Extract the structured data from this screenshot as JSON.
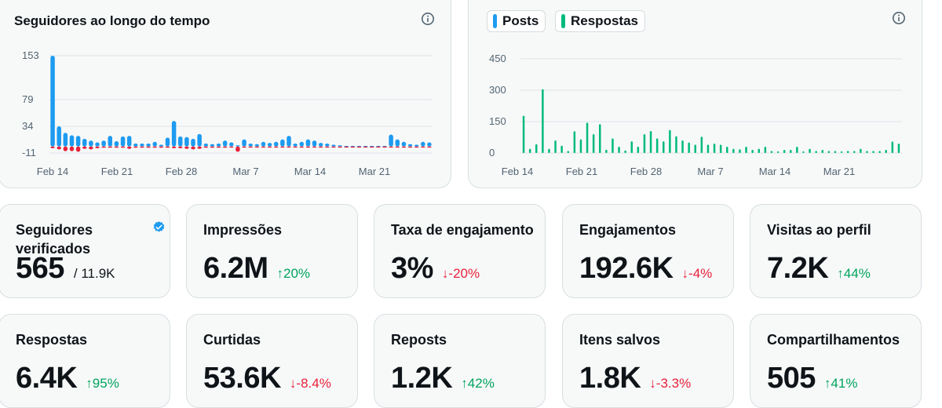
{
  "followers_chart": {
    "title": "Seguidores ao longo do tempo",
    "info_icon": "info-icon"
  },
  "posts_chart": {
    "legend": [
      {
        "label": "Posts",
        "color": "#1d9bf0"
      },
      {
        "label": "Respostas",
        "color": "#00ba7c"
      }
    ],
    "info_icon": "info-icon"
  },
  "chart_data": [
    {
      "type": "bar",
      "title": "Seguidores ao longo do tempo",
      "x_tick_labels": [
        "Feb 14",
        "Feb 21",
        "Feb 28",
        "Mar 7",
        "Mar 14",
        "Mar 21"
      ],
      "y_tick_labels": [
        "153",
        "79",
        "34",
        "-11"
      ],
      "ylim": [
        -11,
        153
      ],
      "grid": true,
      "series": [
        {
          "color": "#1d9bf0",
          "values": [
            153,
            34,
            23,
            19,
            18,
            13,
            10,
            7,
            10,
            18,
            9,
            17,
            18,
            5,
            5,
            5,
            8,
            3,
            15,
            43,
            17,
            16,
            13,
            21,
            5,
            4,
            5,
            10,
            7,
            2,
            12,
            5,
            4,
            8,
            6,
            8,
            12,
            18,
            5,
            8,
            12,
            10,
            6,
            5,
            3,
            2,
            1,
            1,
            1,
            1,
            1,
            1,
            1,
            20,
            12,
            8,
            4,
            3,
            8,
            7
          ]
        },
        {
          "color": "#e8213a",
          "values": [
            -3,
            -5,
            -8,
            -8,
            -9,
            -4,
            -5,
            -3,
            -2,
            -2,
            -2,
            -2,
            -4,
            -2,
            -2,
            -2,
            -2,
            -2,
            -2,
            -3,
            -3,
            -4,
            -5,
            -4,
            -2,
            -2,
            -2,
            -2,
            -1,
            -9,
            -1,
            -1,
            -1,
            -1,
            -1,
            -1,
            -1,
            -1,
            -1,
            -1,
            -1,
            -1,
            -1,
            -1,
            -1,
            -1,
            -1,
            -1,
            -1,
            -1,
            -1,
            -1,
            -1,
            -1,
            -1,
            -1,
            -1,
            -1,
            -1,
            -1
          ]
        }
      ]
    },
    {
      "type": "bar",
      "x_tick_labels": [
        "Feb 14",
        "Feb 21",
        "Feb 28",
        "Mar 7",
        "Mar 14",
        "Mar 21"
      ],
      "y_tick_labels": [
        "450",
        "300",
        "150",
        "0"
      ],
      "ylim": [
        0,
        450
      ],
      "grid": true,
      "series": [
        {
          "name": "Posts",
          "color": "#1d9bf0",
          "values": [
            0,
            0,
            0,
            0,
            0,
            0,
            0,
            0,
            0,
            0,
            0,
            0,
            0,
            0,
            0,
            0,
            0,
            0,
            0,
            0,
            0,
            0,
            0,
            0,
            0,
            0,
            0,
            0,
            0,
            0,
            0,
            0,
            0,
            0,
            0,
            0,
            0,
            0,
            0,
            0,
            0,
            0,
            0,
            0,
            0,
            0,
            0,
            0,
            0,
            0,
            0,
            0,
            0,
            0,
            0,
            0,
            0,
            0,
            0,
            0
          ]
        },
        {
          "name": "Respostas",
          "color": "#00ba7c",
          "values": [
            178,
            20,
            42,
            305,
            20,
            60,
            35,
            10,
            104,
            65,
            145,
            90,
            138,
            16,
            70,
            30,
            12,
            56,
            30,
            90,
            105,
            70,
            56,
            110,
            80,
            60,
            50,
            40,
            78,
            40,
            45,
            40,
            30,
            20,
            18,
            30,
            15,
            20,
            30,
            10,
            8,
            15,
            15,
            30,
            8,
            20,
            10,
            15,
            10,
            10,
            8,
            10,
            10,
            20,
            10,
            10,
            10,
            15,
            55,
            45
          ]
        }
      ]
    }
  ],
  "metrics": [
    {
      "label": "Seguidores verificados",
      "value": "565",
      "sub": "/ 11.9K",
      "change": "",
      "direction": "none",
      "icon": "verified-icon",
      "icon_color": "#1d9bf0"
    },
    {
      "label": "Impressões",
      "value": "6.2M",
      "change": "↑20%",
      "direction": "up"
    },
    {
      "label": "Taxa de engajamento",
      "value": "3%",
      "change": "↓-20%",
      "direction": "down"
    },
    {
      "label": "Engajamentos",
      "value": "192.6K",
      "change": "↓-4%",
      "direction": "down"
    },
    {
      "label": "Visitas ao perfil",
      "value": "7.2K",
      "change": "↑44%",
      "direction": "up"
    },
    {
      "label": "Respostas",
      "value": "6.4K",
      "change": "↑95%",
      "direction": "up"
    },
    {
      "label": "Curtidas",
      "value": "53.6K",
      "change": "↓-8.4%",
      "direction": "down"
    },
    {
      "label": "Reposts",
      "value": "1.2K",
      "change": "↑42%",
      "direction": "up"
    },
    {
      "label": "Itens salvos",
      "value": "1.8K",
      "change": "↓-3.3%",
      "direction": "down"
    },
    {
      "label": "Compartilhamentos",
      "value": "505",
      "change": "↑41%",
      "direction": "up"
    }
  ],
  "colors": {
    "up": "#00a35c",
    "down": "#e8213a",
    "accent": "#1d9bf0",
    "replies": "#00ba7c"
  }
}
